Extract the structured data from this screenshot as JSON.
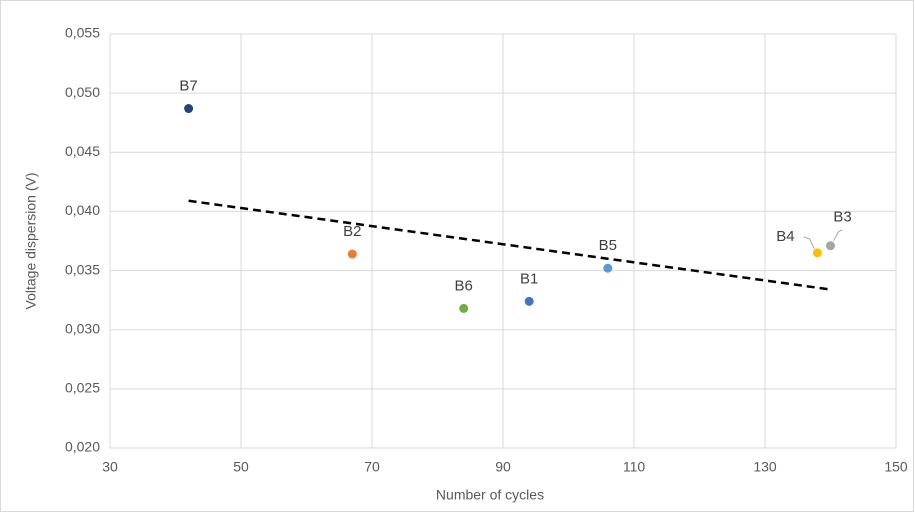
{
  "chart_data": {
    "type": "scatter",
    "x_label": "Number of cycles",
    "y_label": "Voltage dispersion (V)",
    "labels": [
      "B1",
      "B2",
      "B3",
      "B4",
      "B5",
      "B6",
      "B7"
    ],
    "x": [
      94,
      67,
      140,
      138,
      106,
      84,
      42
    ],
    "values": [
      0.0324,
      0.0364,
      0.0371,
      0.0365,
      0.0352,
      0.0318,
      0.0487
    ],
    "colors": [
      "#4472c4",
      "#ed7d31",
      "#a5a5a5",
      "#ffc000",
      "#5b9bd5",
      "#70ad47",
      "#264478"
    ],
    "trendline": {
      "x": [
        42,
        140
      ],
      "values": [
        0.0409,
        0.0334
      ],
      "color": "#000000"
    },
    "xlim": [
      30,
      150
    ],
    "xticks": [
      30,
      50,
      70,
      90,
      110,
      130,
      150
    ],
    "ylim": [
      0.02,
      0.055
    ],
    "yticks": [
      {
        "value": 0.02,
        "label": "0,020"
      },
      {
        "value": 0.025,
        "label": "0,025"
      },
      {
        "value": 0.03,
        "label": "0,030"
      },
      {
        "value": 0.035,
        "label": "0,035"
      },
      {
        "value": 0.04,
        "label": "0,040"
      },
      {
        "value": 0.045,
        "label": "0,045"
      },
      {
        "value": 0.05,
        "label": "0,050"
      },
      {
        "value": 0.055,
        "label": "0,055"
      }
    ],
    "grid": true
  }
}
